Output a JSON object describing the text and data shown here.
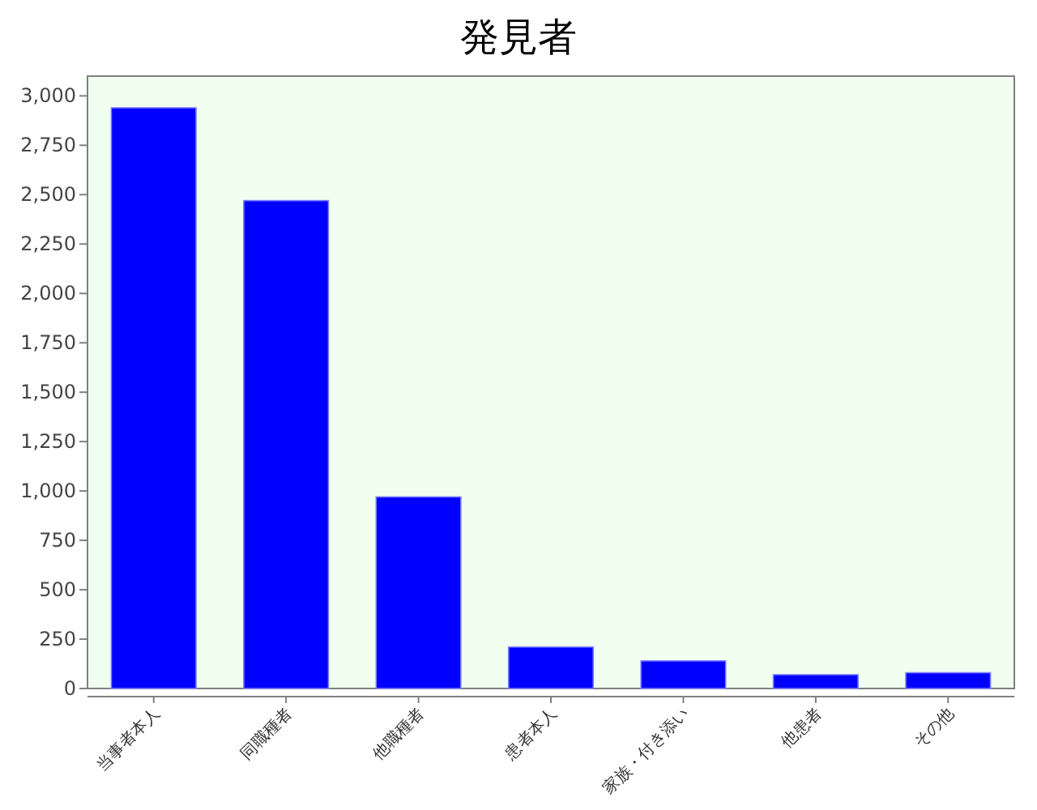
{
  "chart_data": {
    "type": "bar",
    "title": "発見者",
    "categories": [
      "当事者本人",
      "同職種者",
      "他職種者",
      "患者本人",
      "家族・付き添い",
      "他患者",
      "その他"
    ],
    "values": [
      2940,
      2470,
      970,
      210,
      140,
      70,
      80
    ],
    "color": "#0000ff",
    "ylim": [
      0,
      3100
    ],
    "yticks": [
      0,
      250,
      500,
      750,
      {
        "value": 1000,
        "label": "1,000"
      },
      {
        "value": 1250,
        "label": "1,250"
      },
      {
        "value": 1500,
        "label": "1,500"
      },
      {
        "value": 1750,
        "label": "1,750"
      },
      {
        "value": 2000,
        "label": "2,000"
      },
      {
        "value": 2250,
        "label": "2,250"
      },
      {
        "value": 2500,
        "label": "2,500"
      },
      {
        "value": 2750,
        "label": "2,750"
      },
      {
        "value": 3000,
        "label": "3,000"
      }
    ],
    "grid": false
  }
}
